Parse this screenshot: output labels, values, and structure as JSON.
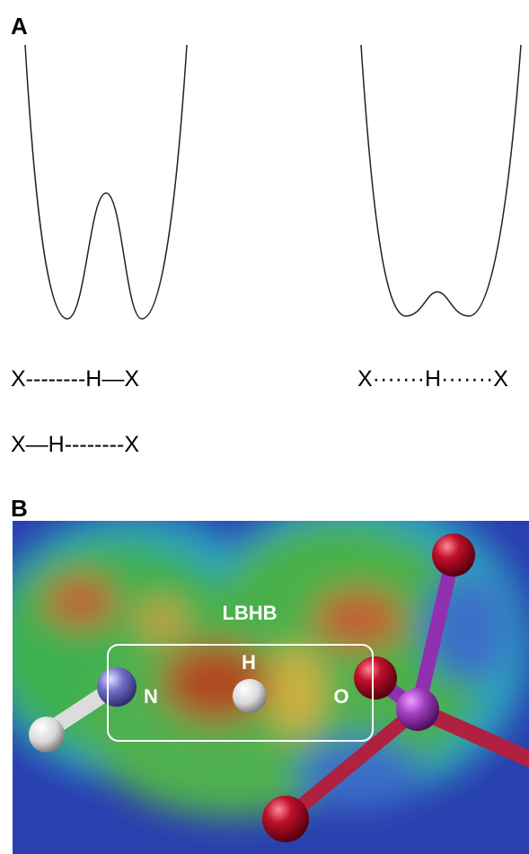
{
  "panel_a": {
    "label": "A",
    "left_formulas": [
      "X--------H—X",
      "X—H--------X"
    ],
    "right_formula": "X·······H·······X"
  },
  "panel_b": {
    "label": "B",
    "box_label": "LBHB",
    "atoms": [
      "N",
      "H",
      "O"
    ]
  }
}
